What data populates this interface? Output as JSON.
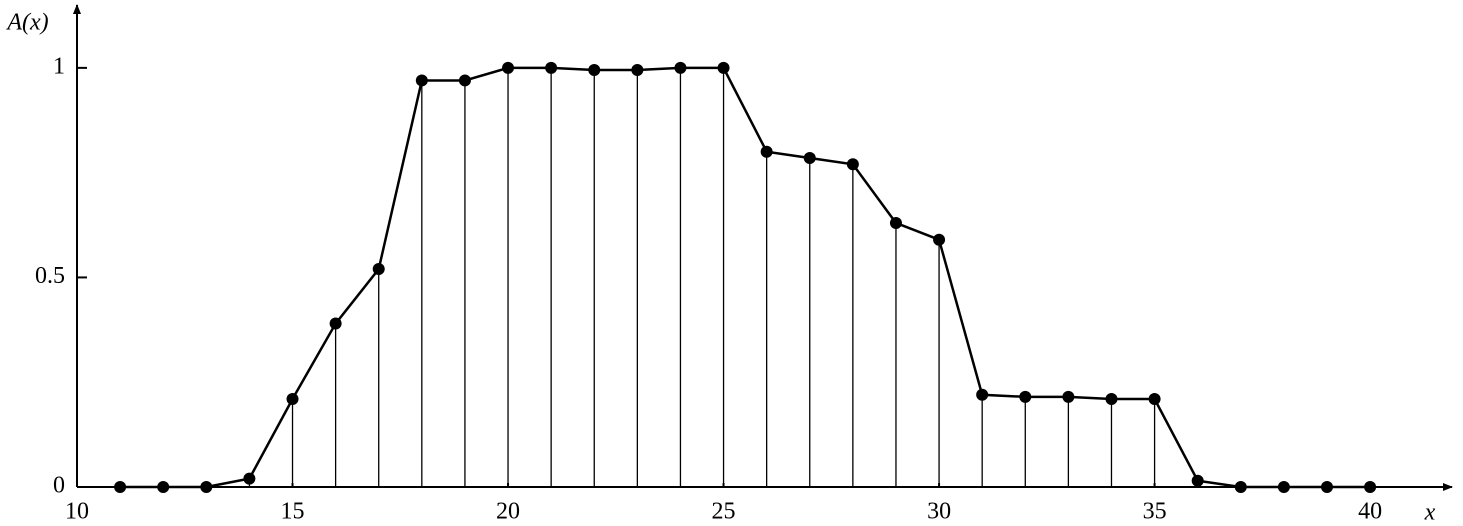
{
  "chart_data": {
    "type": "stem-line",
    "x_label": "x",
    "y_label": "A(x)",
    "x": [
      11,
      12,
      13,
      14,
      15,
      16,
      17,
      18,
      19,
      20,
      21,
      22,
      23,
      24,
      25,
      26,
      27,
      28,
      29,
      30,
      31,
      32,
      33,
      34,
      35,
      36,
      37,
      38,
      39,
      40
    ],
    "values": [
      0,
      0,
      0,
      0.02,
      0.21,
      0.39,
      0.52,
      0.97,
      0.97,
      1.0,
      1.0,
      0.995,
      0.995,
      1.0,
      1.0,
      0.8,
      0.785,
      0.77,
      0.63,
      0.59,
      0.22,
      0.215,
      0.215,
      0.21,
      0.21,
      0.015,
      0,
      0,
      0,
      0
    ],
    "color": "#000000",
    "xlim": [
      10,
      41.9
    ],
    "ylim": [
      0,
      1.15
    ],
    "xticks": [
      10,
      15,
      20,
      25,
      30,
      35,
      40
    ],
    "yticks": [
      0,
      0.5,
      1
    ]
  }
}
